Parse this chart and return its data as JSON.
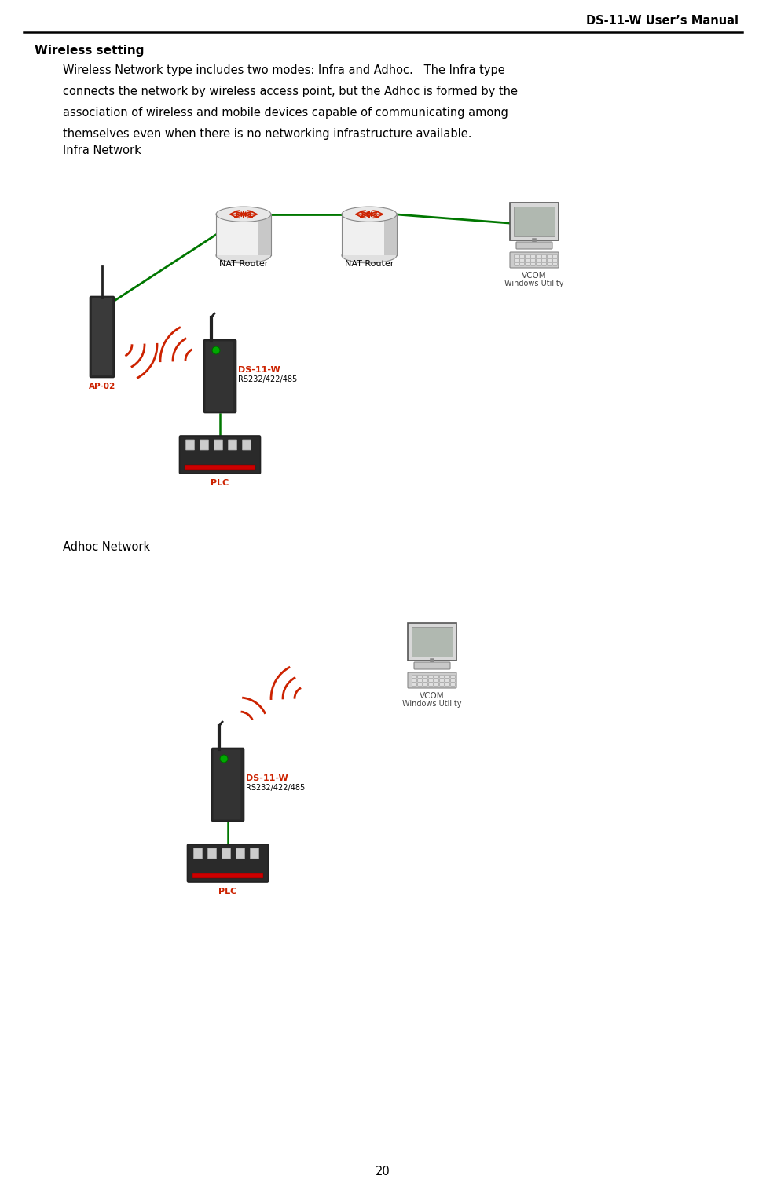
{
  "header_text": "DS-11-W User’s Manual",
  "section_title": "Wireless setting",
  "body_text_lines": [
    "Wireless Network type includes two modes: Infra and Adhoc.   The Infra type",
    "connects the network by wireless access point, but the Adhoc is formed by the",
    "association of wireless and mobile devices capable of communicating among",
    "themselves even when there is no networking infrastructure available."
  ],
  "infra_label": "Infra Network",
  "adhoc_label": "Adhoc Network",
  "page_number": "20",
  "bg_color": "#ffffff",
  "text_color": "#000000",
  "red_color": "#cc2200",
  "green_color": "#007700",
  "nat_label": "NAT Router",
  "vcom_label1": "VCOM",
  "vcom_label2": "Windows Utility",
  "ds11w_label1": "DS-11-W",
  "ds11w_label2": "RS232/422/485",
  "plc_label": "PLC",
  "ap02_label": "AP-02"
}
